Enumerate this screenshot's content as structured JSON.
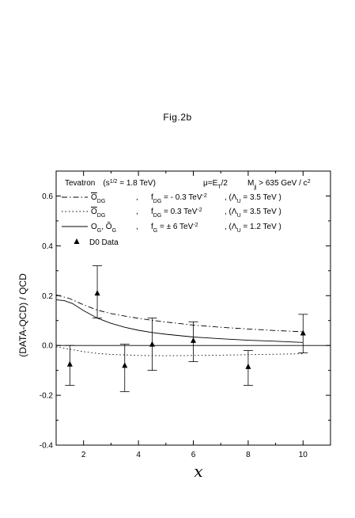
{
  "figure_label": "Fig.2b",
  "chart_data": {
    "type": "line",
    "title": "",
    "xlabel": "x",
    "ylabel": "(DATA-QCD) / QCD",
    "xlim": [
      1,
      11
    ],
    "ylim": [
      -0.4,
      0.7
    ],
    "xticks": [
      2,
      4,
      6,
      8,
      10
    ],
    "xtick_labels": [
      "2",
      "4",
      "6",
      "8",
      "10"
    ],
    "yticks": [
      -0.4,
      -0.2,
      0.0,
      0.2,
      0.4,
      0.6
    ],
    "ytick_labels": [
      "-0.4",
      "-0.2",
      "0.0",
      "0.2",
      "0.4",
      "0.6"
    ],
    "grid": false,
    "legend_placement": "top",
    "header": {
      "experiment": "Tevatron",
      "energy": "(s",
      "energy_sup": "1/2",
      "energy_val": " = 1.8 TeV)",
      "scale": "μ=E",
      "scale_sub": "T",
      "scale_rest": "/2",
      "cut": "M",
      "cut_sub": "jj",
      "cut_rest": " > 635 GeV / c",
      "cut_sup": "2"
    },
    "legend": [
      {
        "style": "dashdot",
        "op": "O",
        "op_sub": "DG",
        "coupling": "f",
        "coupling_sub": "DG",
        "value": "= - 0.3 TeV",
        "value_sup": "-2",
        "scale": ", (Λ",
        "scale_sub": "U",
        "scale_val": "= 3.5 TeV )"
      },
      {
        "style": "dotted",
        "op": "O",
        "op_sub": "DG",
        "coupling": "f",
        "coupling_sub": "DG",
        "value": "=   0.3 TeV",
        "value_sup": "-2",
        "scale": ", (Λ",
        "scale_sub": "U",
        "scale_val": "= 3.5 TeV )"
      },
      {
        "style": "solid",
        "op": "O",
        "op_sub": "G",
        "op2": ", Õ",
        "op2_sub": "G",
        "coupling": "f",
        "coupling_sub": "G",
        "value": "= ± 6   TeV",
        "value_sup": "-2",
        "scale": ", (Λ",
        "scale_sub": "U",
        "scale_val": "= 1.2 TeV )"
      },
      {
        "style": "marker",
        "label": "D0 Data"
      }
    ],
    "series": [
      {
        "style": "dashdot",
        "x": [
          1.0,
          1.5,
          2.0,
          2.5,
          3.0,
          3.5,
          4.0,
          4.5,
          5.0,
          6.0,
          7.0,
          8.0,
          9.0,
          10.0
        ],
        "y": [
          0.203,
          0.188,
          0.163,
          0.142,
          0.128,
          0.118,
          0.109,
          0.101,
          0.094,
          0.082,
          0.073,
          0.066,
          0.06,
          0.055
        ]
      },
      {
        "style": "dotted",
        "x": [
          1.0,
          1.5,
          2.0,
          2.5,
          3.0,
          3.5,
          4.0,
          5.0,
          6.0,
          7.0,
          8.0,
          9.0,
          10.0
        ],
        "y": [
          -0.005,
          -0.015,
          -0.025,
          -0.032,
          -0.036,
          -0.038,
          -0.04,
          -0.041,
          -0.04,
          -0.039,
          -0.037,
          -0.035,
          -0.033
        ]
      },
      {
        "style": "solid",
        "x": [
          1.0,
          1.3,
          1.6,
          2.0,
          2.5,
          3.0,
          3.5,
          4.0,
          4.5,
          5.0,
          6.0,
          7.0,
          8.0,
          9.0,
          10.0
        ],
        "y": [
          0.183,
          0.18,
          0.168,
          0.14,
          0.11,
          0.089,
          0.073,
          0.061,
          0.052,
          0.045,
          0.034,
          0.027,
          0.021,
          0.017,
          0.012
        ]
      }
    ],
    "data_points": {
      "label": "D0 Data",
      "x": [
        1.5,
        2.5,
        3.5,
        4.5,
        6.0,
        8.0,
        10.0
      ],
      "y": [
        -0.075,
        0.21,
        -0.08,
        0.005,
        0.02,
        -0.085,
        0.05
      ],
      "err_low": [
        0.085,
        0.1,
        0.105,
        0.105,
        0.085,
        0.075,
        0.08
      ],
      "err_high": [
        0.075,
        0.11,
        0.085,
        0.105,
        0.075,
        0.065,
        0.075
      ]
    }
  }
}
